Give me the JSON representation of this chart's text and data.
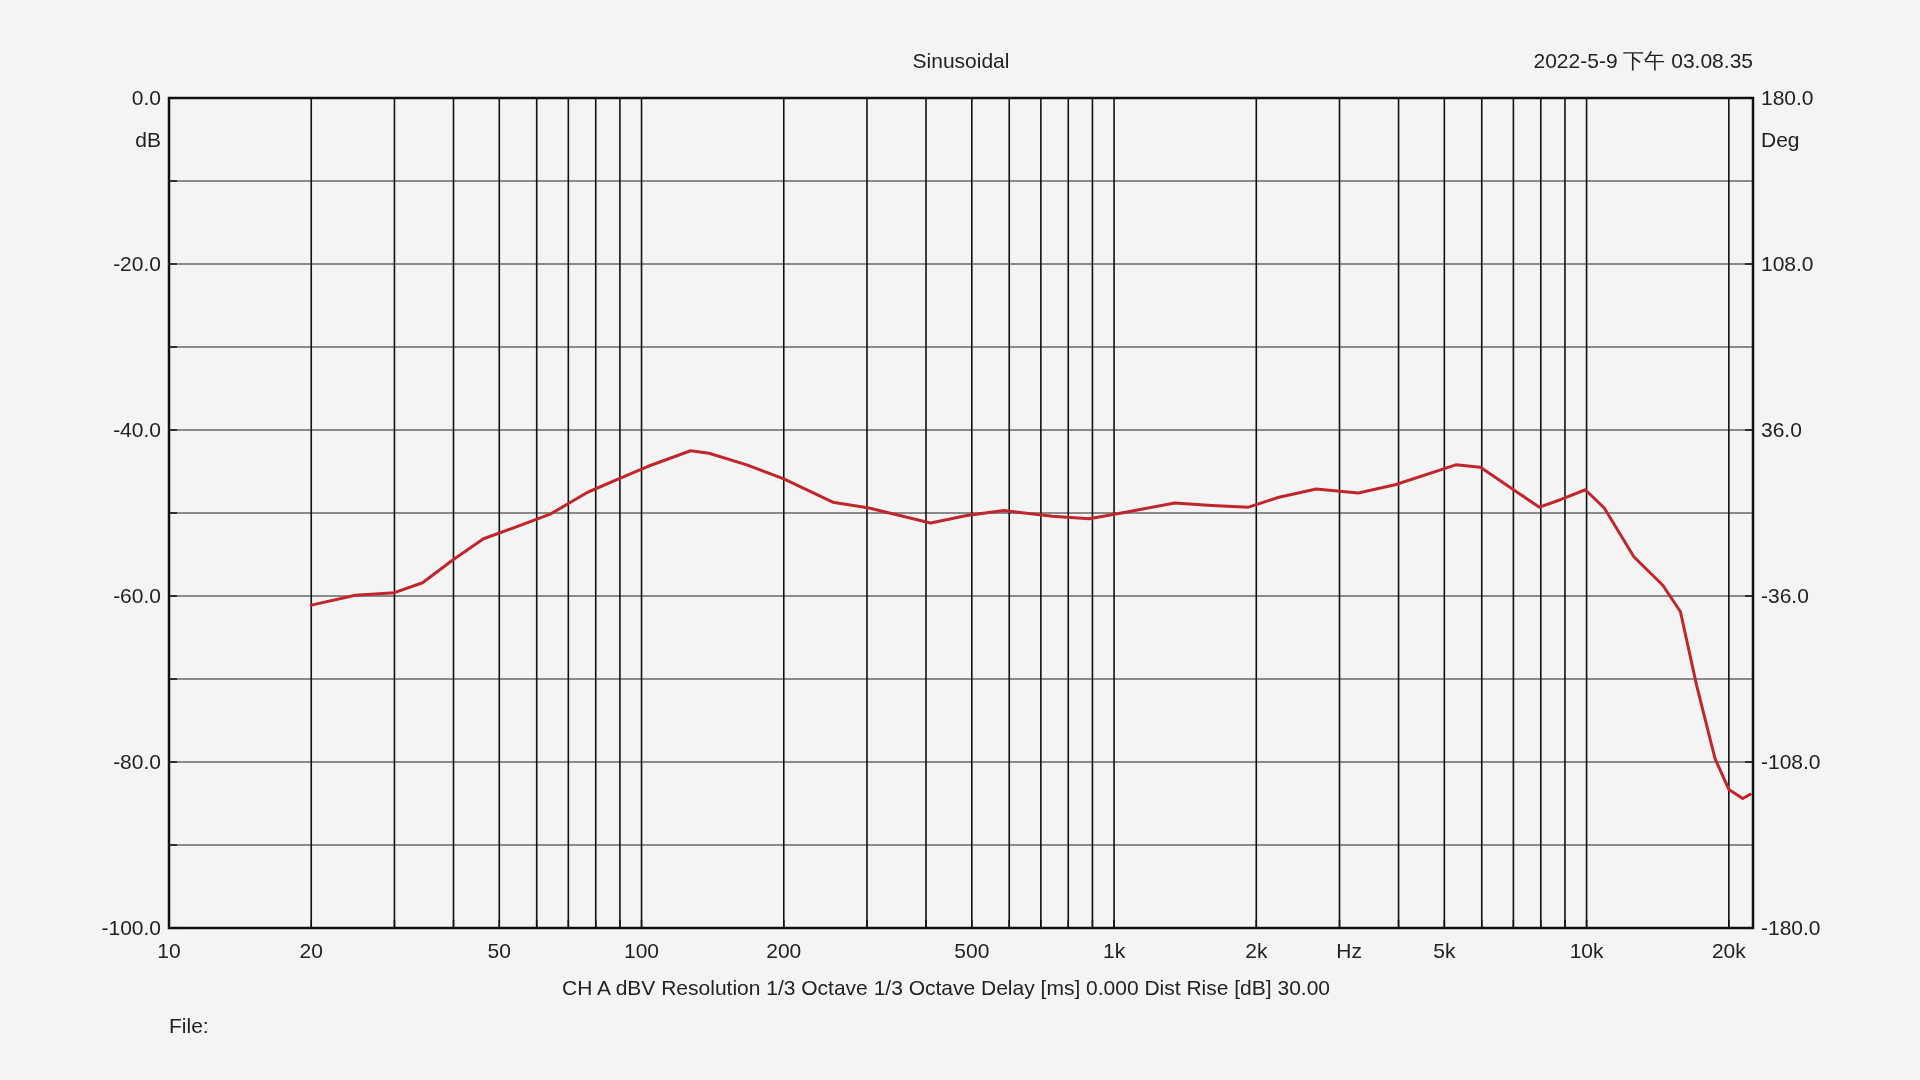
{
  "chart_data": {
    "type": "line",
    "title": "Sinusoidal",
    "xlabel": "Hz",
    "ylabel": "dB",
    "y2label": "Deg",
    "annotations": [
      "2022-5-9 下午 03.08.35",
      "CH A   dBV   Resolution 1/3 Octave   1/3 Octave   Delay [ms] 0.000   Dist Rise [dB] 30.00",
      "File:"
    ],
    "log": "x",
    "grid": true,
    "line_style": "solid",
    "marker": "none",
    "xlim": [
      10,
      22500
    ],
    "ylim": [
      -100,
      0
    ],
    "y2lim": [
      -180,
      180
    ],
    "xticks": [
      10,
      20,
      {
        "value": 30,
        "label": null
      },
      {
        "value": 40,
        "label": null
      },
      50,
      {
        "value": 60,
        "label": null
      },
      {
        "value": 70,
        "label": null
      },
      {
        "value": 80,
        "label": null
      },
      {
        "value": 90,
        "label": null
      },
      100,
      200,
      {
        "value": 300,
        "label": null
      },
      {
        "value": 400,
        "label": null
      },
      500,
      {
        "value": 600,
        "label": null
      },
      {
        "value": 700,
        "label": null
      },
      {
        "value": 800,
        "label": null
      },
      {
        "value": 900,
        "label": null
      },
      {
        "value": 1000,
        "label": "1k"
      },
      {
        "value": 2000,
        "label": "2k"
      },
      {
        "value": 3000,
        "label": null
      },
      {
        "value": 4000,
        "label": null
      },
      {
        "value": 5000,
        "label": "5k"
      },
      {
        "value": 6000,
        "label": null
      },
      {
        "value": 7000,
        "label": null
      },
      {
        "value": 8000,
        "label": null
      },
      {
        "value": 9000,
        "label": null
      },
      {
        "value": 10000,
        "label": "10k"
      },
      {
        "value": 20000,
        "label": "20k"
      }
    ],
    "yticks": [
      {
        "value": 0,
        "label": "0.0"
      },
      {
        "value": -10,
        "label": null
      },
      {
        "value": -20,
        "label": "-20.0"
      },
      {
        "value": -30,
        "label": null
      },
      {
        "value": -40,
        "label": "-40.0"
      },
      {
        "value": -50,
        "label": null
      },
      {
        "value": -60,
        "label": "-60.0"
      },
      {
        "value": -70,
        "label": null
      },
      {
        "value": -80,
        "label": "-80.0"
      },
      {
        "value": -90,
        "label": null
      },
      {
        "value": -100,
        "label": "-100.0"
      }
    ],
    "y2ticks": [
      {
        "value": 180,
        "label": "180.0"
      },
      {
        "value": 108,
        "label": "108.0"
      },
      {
        "value": 36,
        "label": "36.0"
      },
      {
        "value": -36,
        "label": "-36.0"
      },
      {
        "value": -108,
        "label": "-108.0"
      },
      {
        "value": -180,
        "label": "-180.0"
      }
    ],
    "x": [
      20,
      24.8,
      30,
      34.4,
      40,
      46.3,
      53.6,
      64.3,
      76.9,
      92,
      103,
      127,
      139,
      167,
      200,
      254,
      303,
      409,
      488,
      584,
      740,
      886,
      1058,
      1344,
      1610,
      1925,
      2234,
      2678,
      3288,
      3934,
      5287,
      5963,
      7130,
      7947,
      8800,
      9940,
      10900,
      12600,
      14500,
      15800,
      17100,
      18700,
      20000,
      21400,
      22200
    ],
    "series": [
      {
        "color": "#c0272d",
        "values": [
          -61.1,
          -59.9,
          -59.6,
          -58.4,
          -55.6,
          -53.1,
          -51.8,
          -50.1,
          -47.5,
          -45.6,
          -44.4,
          -42.5,
          -42.8,
          -44.2,
          -45.9,
          -48.7,
          -49.4,
          -51.2,
          -50.3,
          -49.7,
          -50.4,
          -50.7,
          -49.9,
          -48.8,
          -49.1,
          -49.3,
          -48.1,
          -47.1,
          -47.6,
          -46.6,
          -44.2,
          -44.5,
          -47.5,
          -49.3,
          -48.4,
          -47.2,
          -49.4,
          -55.3,
          -58.7,
          -61.9,
          -70.8,
          -79.6,
          -83.3,
          -84.4,
          -83.9
        ]
      }
    ]
  }
}
